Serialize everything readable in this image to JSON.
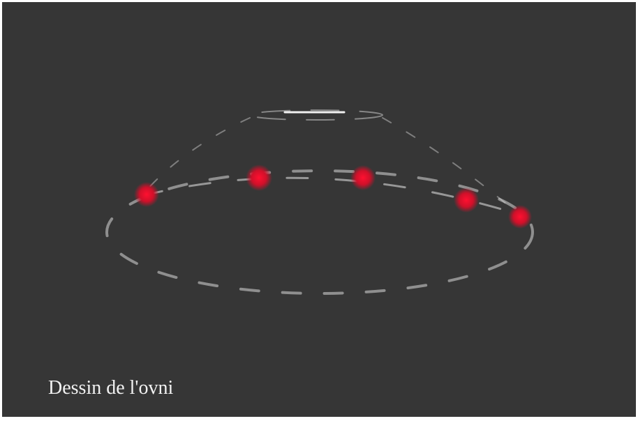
{
  "caption": "Dessin de l'ovni"
}
